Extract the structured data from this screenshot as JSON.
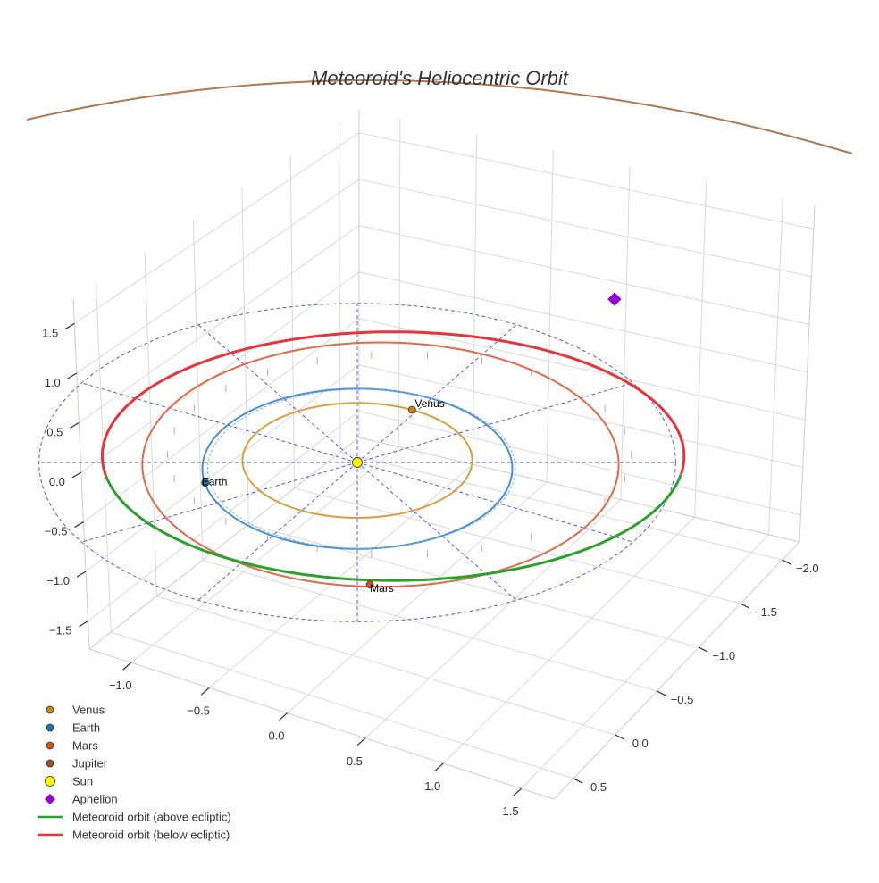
{
  "chart_data": {
    "type": "scatter",
    "projection": "3d",
    "title": "Meteoroid's Heliocentric Orbit",
    "xlabel": "",
    "ylabel": "",
    "zlabel": "",
    "grid": true,
    "legend_position": "bottom-left",
    "axes": {
      "x": {
        "ticks": [
          -1.0,
          -0.5,
          0.0,
          0.5,
          1.0,
          1.5
        ],
        "labels": [
          "−1.0",
          "−0.5",
          "0.0",
          "0.5",
          "1.0",
          "1.5"
        ]
      },
      "y": {
        "ticks": [
          -2.0,
          -1.5,
          -1.0,
          -0.5,
          0.0,
          0.5
        ],
        "labels": [
          "−2.0",
          "−1.5",
          "−1.0",
          "−0.5",
          "0.0",
          "0.5"
        ]
      },
      "z": {
        "ticks": [
          -1.5,
          -1.0,
          -0.5,
          0.0,
          0.5,
          1.0,
          1.5
        ],
        "labels": [
          "−1.5",
          "−1.0",
          "−0.5",
          "0.0",
          "0.5",
          "1.0",
          "1.5"
        ]
      }
    },
    "bodies": [
      {
        "name": "Venus",
        "label": "Venus",
        "color": "#d4820b",
        "radius_au": 0.72
      },
      {
        "name": "Earth",
        "label": "Earth",
        "color": "#1f77b4",
        "radius_au": 1.0
      },
      {
        "name": "Mars",
        "label": "Mars",
        "color": "#d95319",
        "radius_au": 1.52
      },
      {
        "name": "Jupiter",
        "label": "",
        "color": "#a0522d",
        "radius_au": 5.2
      },
      {
        "name": "Sun",
        "label": "",
        "color": "#ffff00"
      }
    ],
    "orbit_colors": {
      "Venus": "#d4a040",
      "Earth": "#4a90d0",
      "Mars": "#e06a4a",
      "Jupiter": "#b07850"
    },
    "aphelion": {
      "name": "Aphelion",
      "color": "#9400d3"
    },
    "meteoroid_orbit": {
      "above": {
        "name": "Meteoroid orbit (above ecliptic)",
        "color": "#2ca02c"
      },
      "below": {
        "name": "Meteoroid orbit (below ecliptic)",
        "color": "#e8333a"
      }
    },
    "ecliptic_reference_color": "#5555dd",
    "legend": [
      {
        "label": "Venus",
        "marker": "circle",
        "color": "#d4820b"
      },
      {
        "label": "Earth",
        "marker": "circle",
        "color": "#1f77b4"
      },
      {
        "label": "Mars",
        "marker": "circle",
        "color": "#d95319"
      },
      {
        "label": "Jupiter",
        "marker": "circle",
        "color": "#a0522d"
      },
      {
        "label": "Sun",
        "marker": "circle",
        "color": "#ffff00"
      },
      {
        "label": "Aphelion",
        "marker": "diamond",
        "color": "#9400d3"
      },
      {
        "label": "Meteoroid orbit (above ecliptic)",
        "marker": "line",
        "color": "#2ca02c"
      },
      {
        "label": "Meteoroid orbit (below ecliptic)",
        "marker": "line",
        "color": "#e8333a"
      }
    ]
  }
}
